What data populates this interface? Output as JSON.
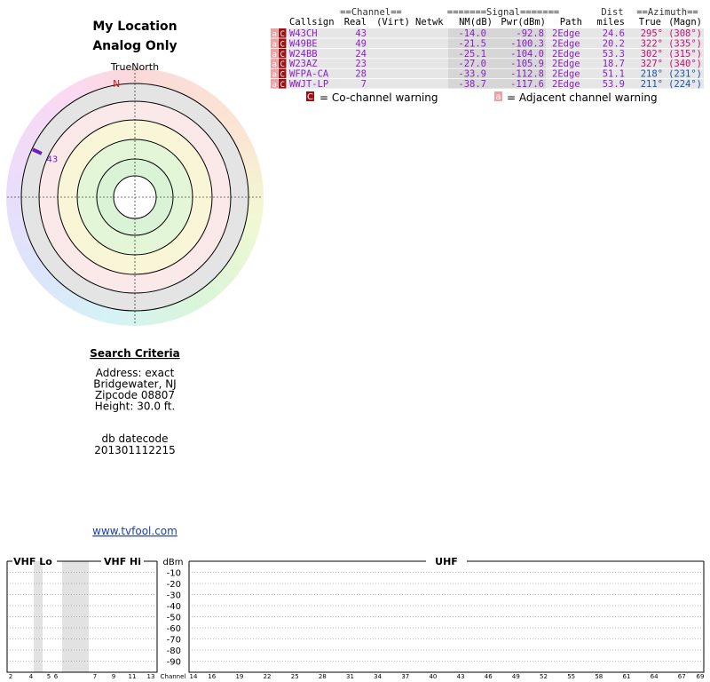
{
  "header": {
    "title": "My Location",
    "subtitle": "Analog Only"
  },
  "plot": {
    "north_label": "TrueNorth",
    "n_marker": "N",
    "markers": [
      {
        "label": "43",
        "azimuth": 295,
        "color": "#6a1fc0"
      }
    ]
  },
  "search": {
    "title": "Search Criteria",
    "lines": [
      "Address: exact",
      "Bridgewater, NJ",
      "Zipcode 08807",
      "Height: 30.0 ft."
    ],
    "db_label": "db datecode",
    "db_value": "201301112215",
    "link": "www.tvfool.com"
  },
  "table": {
    "group_headers": [
      "==Channel==",
      "=======Signal=======",
      "Dist",
      "==Azimuth=="
    ],
    "columns": [
      "Callsign",
      "Real",
      "(Virt)",
      "Netwk",
      "NM(dB)",
      "Pwr(dBm)",
      "Path",
      "miles",
      "True",
      "(Magn)"
    ],
    "rows": [
      {
        "flags": [
          "a",
          "C"
        ],
        "callsign": "W43CH",
        "real": "43",
        "nm": "-14.0",
        "pwr": "-92.8",
        "path": "2Edge",
        "dist": "24.6",
        "az_true": "295°",
        "az_magn": "(308°)",
        "az_color": "#c0107a"
      },
      {
        "flags": [
          "a",
          "C"
        ],
        "callsign": "W49BE",
        "real": "49",
        "nm": "-21.5",
        "pwr": "-100.3",
        "path": "2Edge",
        "dist": "20.2",
        "az_true": "322°",
        "az_magn": "(335°)",
        "az_color": "#c0107a"
      },
      {
        "flags": [
          "a",
          "C"
        ],
        "callsign": "W24BB",
        "real": "24",
        "nm": "-25.1",
        "pwr": "-104.0",
        "path": "2Edge",
        "dist": "53.3",
        "az_true": "302°",
        "az_magn": "(315°)",
        "az_color": "#c0107a"
      },
      {
        "flags": [
          "a",
          "C"
        ],
        "callsign": "W23AZ",
        "real": "23",
        "nm": "-27.0",
        "pwr": "-105.9",
        "path": "2Edge",
        "dist": "18.7",
        "az_true": "327°",
        "az_magn": "(340°)",
        "az_color": "#c0107a"
      },
      {
        "flags": [
          "a",
          "C"
        ],
        "callsign": "WFPA-CA",
        "real": "28",
        "nm": "-33.9",
        "pwr": "-112.8",
        "path": "2Edge",
        "dist": "51.1",
        "az_true": "218°",
        "az_magn": "(231°)",
        "az_color": "#1a55a8"
      },
      {
        "flags": [
          "a",
          "C"
        ],
        "callsign": "WWJT-LP",
        "real": "7",
        "nm": "-38.7",
        "pwr": "-117.6",
        "path": "2Edge",
        "dist": "53.9",
        "az_true": "211°",
        "az_magn": "(224°)",
        "az_color": "#1a55a8"
      }
    ]
  },
  "legend": {
    "co_icon": "C",
    "co_text": "= Co-channel warning",
    "adj_icon": "a",
    "adj_text": "= Adjacent channel warning"
  },
  "spectrum": {
    "sections": [
      "VHF Lo",
      "VHF Hi",
      "UHF"
    ],
    "unit": "dBm",
    "axis_label": "Channel",
    "ylim": [
      0,
      -100
    ],
    "yticks": [
      -10,
      -20,
      -30,
      -40,
      -50,
      -60,
      -70,
      -80,
      -90
    ],
    "vhf_channels": [
      2,
      4,
      5,
      6,
      7,
      9,
      11,
      13
    ],
    "uhf_channels": [
      14,
      16,
      19,
      22,
      25,
      28,
      31,
      34,
      37,
      40,
      43,
      46,
      49,
      52,
      55,
      58,
      61,
      64,
      67,
      69
    ]
  }
}
